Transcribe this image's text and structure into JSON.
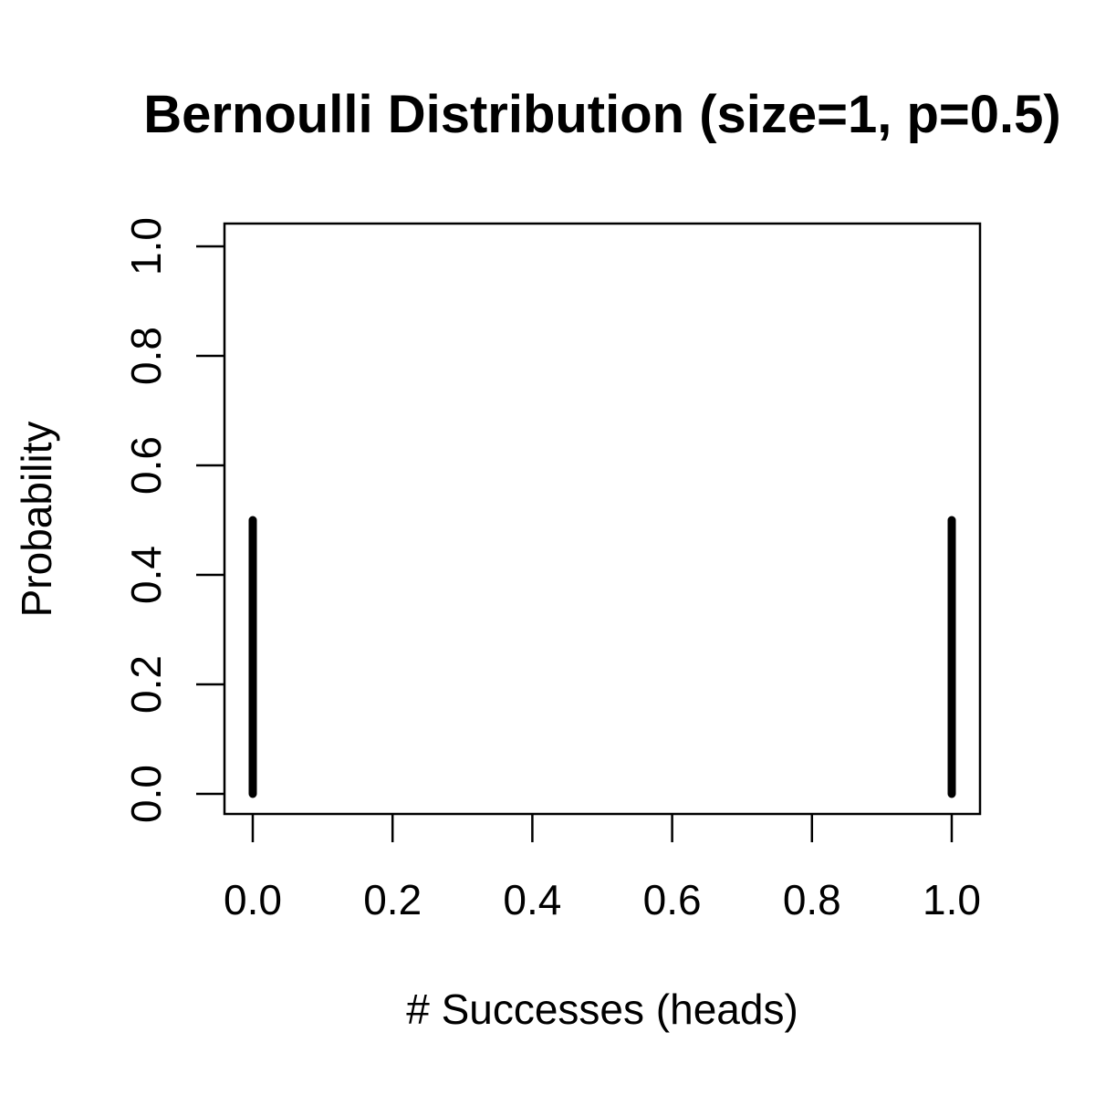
{
  "chart_data": {
    "type": "bar",
    "title": "Bernoulli Distribution (size=1, p=0.5)",
    "xlabel": "# Successes (heads)",
    "ylabel": "Probability",
    "x": [
      0,
      1
    ],
    "values": [
      0.5,
      0.5
    ],
    "xlim": [
      0,
      1
    ],
    "ylim": [
      0,
      1
    ],
    "x_ticks": [
      "0.0",
      "0.2",
      "0.4",
      "0.6",
      "0.8",
      "1.0"
    ],
    "y_ticks": [
      "0.0",
      "0.2",
      "0.4",
      "0.6",
      "0.8",
      "1.0"
    ],
    "grid": false,
    "color": "#000000"
  }
}
